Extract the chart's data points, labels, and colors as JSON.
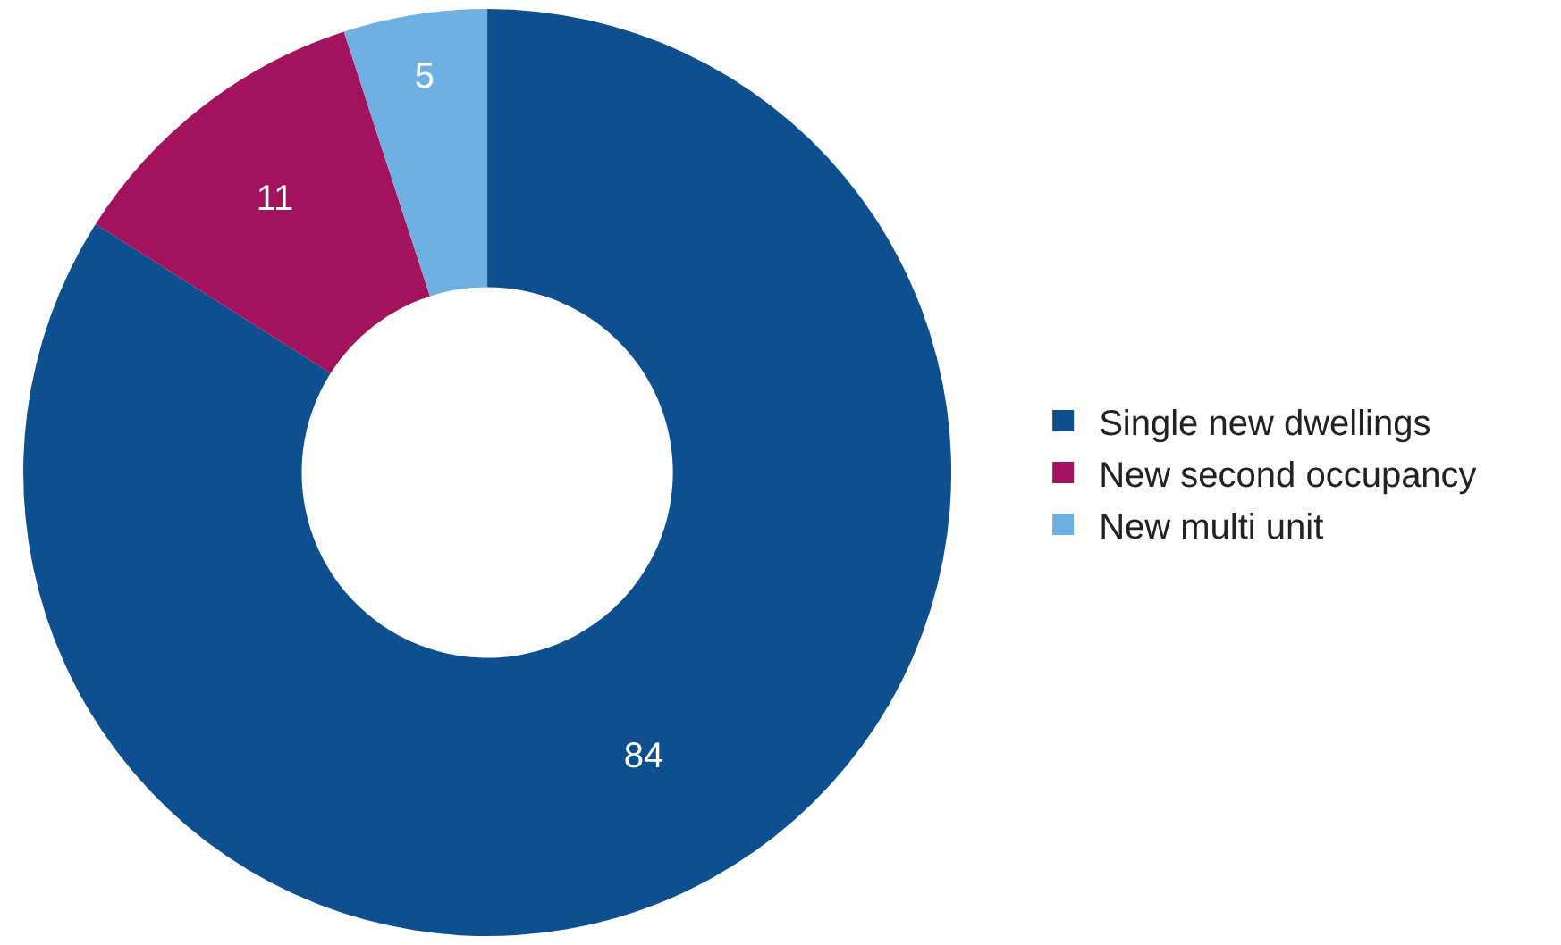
{
  "chart_data": {
    "type": "donut",
    "categories": [
      "Single new dwellings",
      "New second occupancy",
      "New multi unit"
    ],
    "values": [
      84,
      11,
      5
    ],
    "colors": [
      "#0d4f8f",
      "#a3125d",
      "#6fb0e2"
    ],
    "data_labels": true,
    "legend": "right"
  }
}
